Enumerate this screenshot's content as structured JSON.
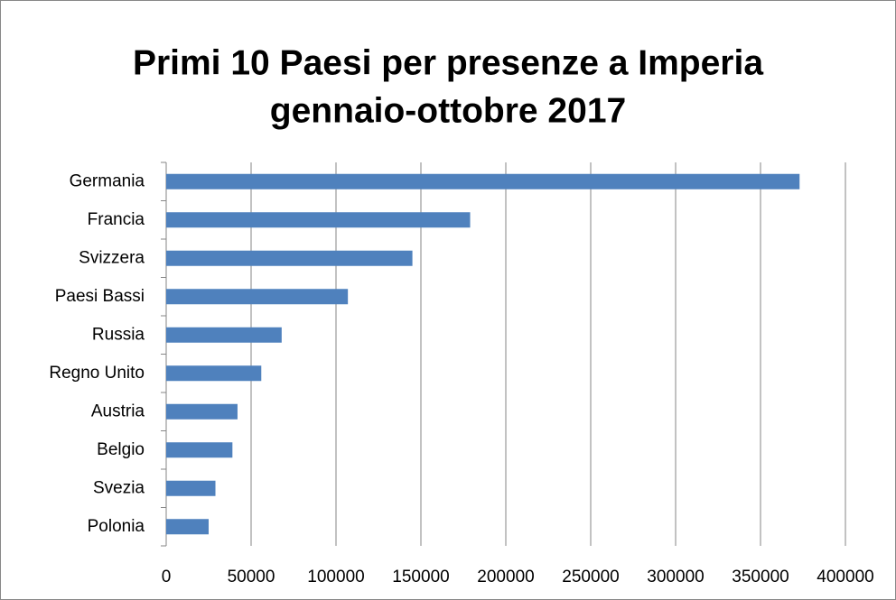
{
  "chart_data": {
    "type": "bar",
    "orientation": "horizontal",
    "title": [
      "Primi 10 Paesi per presenze a Imperia",
      "gennaio-ottobre 2017"
    ],
    "categories": [
      "Germania",
      "Francia",
      "Svizzera",
      "Paesi Bassi",
      "Russia",
      "Regno Unito",
      "Austria",
      "Belgio",
      "Svezia",
      "Polonia"
    ],
    "values": [
      373000,
      179000,
      145000,
      107000,
      68000,
      56000,
      42000,
      39000,
      29000,
      25000
    ],
    "color": "#4f81bd",
    "xlim": [
      0,
      400000
    ],
    "xticks": [
      0,
      50000,
      100000,
      150000,
      200000,
      250000,
      300000,
      350000,
      400000
    ],
    "grid": true
  }
}
